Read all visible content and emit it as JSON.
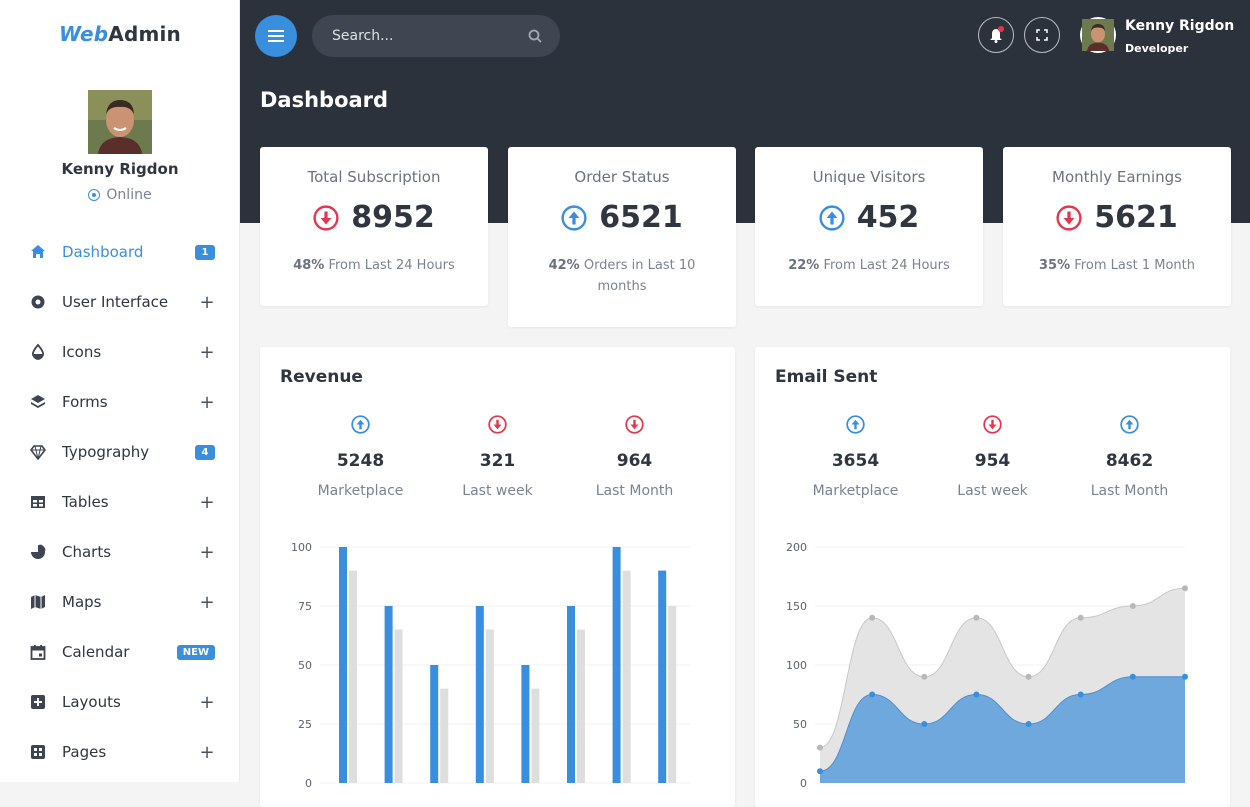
{
  "brand": {
    "part1": "Web",
    "part2": "Admin"
  },
  "profile": {
    "name": "Kenny Rigdon",
    "status": "Online"
  },
  "nav": [
    {
      "label": "Dashboard",
      "icon": "home-icon",
      "badge": "1",
      "active": true
    },
    {
      "label": "User Interface",
      "icon": "target-icon",
      "plus": "+"
    },
    {
      "label": "Icons",
      "icon": "drop-icon",
      "plus": "+"
    },
    {
      "label": "Forms",
      "icon": "layers-icon",
      "plus": "+"
    },
    {
      "label": "Typography",
      "icon": "diamond-icon",
      "badge": "4"
    },
    {
      "label": "Tables",
      "icon": "table-icon",
      "plus": "+"
    },
    {
      "label": "Charts",
      "icon": "pie-chart-icon",
      "plus": "+"
    },
    {
      "label": "Maps",
      "icon": "map-icon",
      "plus": "+"
    },
    {
      "label": "Calendar",
      "icon": "calendar-icon",
      "badge": "NEW"
    },
    {
      "label": "Layouts",
      "icon": "layout-icon",
      "plus": "+"
    },
    {
      "label": "Pages",
      "icon": "pages-icon",
      "plus": "+"
    }
  ],
  "topbar": {
    "search_placeholder": "Search...",
    "user_name": "Kenny Rigdon",
    "user_role": "Developer",
    "page_title": "Dashboard"
  },
  "stats": [
    {
      "title": "Total Subscription",
      "value": "8952",
      "trend": "down",
      "desc_strong": "48%",
      "desc": " From Last 24 Hours"
    },
    {
      "title": "Order Status",
      "value": "6521",
      "trend": "up",
      "desc_strong": "42%",
      "desc": " Orders in Last 10 months"
    },
    {
      "title": "Unique Visitors",
      "value": "452",
      "trend": "up",
      "desc_strong": "22%",
      "desc": " From Last 24 Hours"
    },
    {
      "title": "Monthly Earnings",
      "value": "5621",
      "trend": "down",
      "desc_strong": "35%",
      "desc": " From Last 1 Month"
    }
  ],
  "revenue": {
    "title": "Revenue",
    "metrics": [
      {
        "value": "5248",
        "label": "Marketplace",
        "trend": "up"
      },
      {
        "value": "321",
        "label": "Last week",
        "trend": "down"
      },
      {
        "value": "964",
        "label": "Last Month",
        "trend": "down"
      }
    ]
  },
  "email": {
    "title": "Email Sent",
    "metrics": [
      {
        "value": "3654",
        "label": "Marketplace",
        "trend": "up"
      },
      {
        "value": "954",
        "label": "Last week",
        "trend": "down"
      },
      {
        "value": "8462",
        "label": "Last Month",
        "trend": "up"
      }
    ]
  },
  "colors": {
    "accent": "#3a8ede",
    "danger": "#e2374e",
    "dark": "#2c323c",
    "bar_secondary": "#dedede",
    "area_primary": "#6fa8dc",
    "area_secondary": "#e4e4e4"
  },
  "chart_data": [
    {
      "type": "bar",
      "ylim": [
        0,
        100
      ],
      "yticks": [
        "100",
        "75",
        "50",
        "25",
        "0"
      ],
      "series": [
        {
          "values": [
            100,
            75,
            50,
            75,
            50,
            75,
            100,
            90
          ]
        },
        {
          "values": [
            90,
            65,
            40,
            65,
            40,
            65,
            90,
            75
          ]
        }
      ]
    },
    {
      "type": "area",
      "ylim": [
        0,
        200
      ],
      "yticks": [
        "200",
        "150",
        "100",
        "50",
        "0"
      ],
      "series": [
        {
          "values": [
            30,
            140,
            90,
            140,
            90,
            140,
            150,
            165
          ]
        },
        {
          "values": [
            10,
            75,
            50,
            75,
            50,
            75,
            90,
            90
          ]
        }
      ]
    }
  ]
}
